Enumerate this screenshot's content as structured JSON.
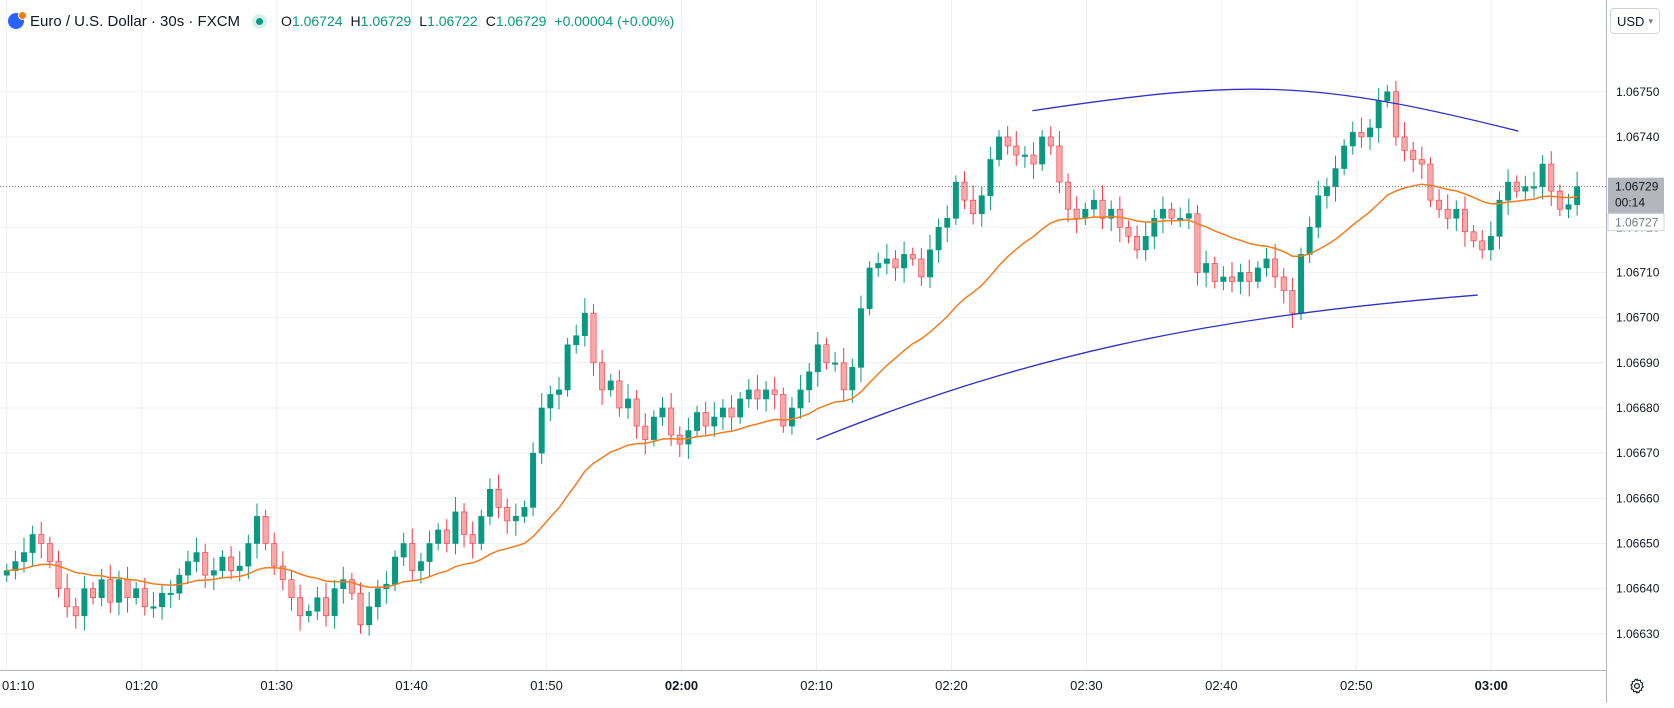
{
  "header": {
    "symbol": "Euro / U.S. Dollar · 30s · FXCM",
    "ohlc": {
      "o_label": "O",
      "o": "1.06724",
      "h_label": "H",
      "h": "1.06729",
      "l_label": "L",
      "l": "1.06722",
      "c_label": "C",
      "c": "1.06729",
      "change": "+0.00004 (+0.00%)"
    }
  },
  "currency_button": {
    "label": "USD"
  },
  "price_tags": {
    "last": "1.06729",
    "countdown": "00:14",
    "ma": "1.06727"
  },
  "colors": {
    "up": "#089981",
    "down": "#f23645",
    "ma": "#f57c1f",
    "trendline": "#3030c8",
    "grid": "#eef1f6",
    "axis_text": "#131722"
  },
  "icons": {
    "settings": "gear-icon",
    "logo": "flag-icon"
  },
  "chart_data": {
    "type": "candlestick",
    "y_range": [
      1.06622,
      1.06765
    ],
    "x_range_minutes": [
      69.5,
      188.5
    ],
    "y_ticks": [
      "1.06750",
      "1.06740",
      "1.06720",
      "1.06710",
      "1.06700",
      "1.06690",
      "1.06680",
      "1.06670",
      "1.06660",
      "1.06650",
      "1.06640",
      "1.06630"
    ],
    "x_ticks": [
      {
        "t": 70,
        "label": "01:10",
        "bold": false
      },
      {
        "t": 80,
        "label": "01:20",
        "bold": false
      },
      {
        "t": 90,
        "label": "01:30",
        "bold": false
      },
      {
        "t": 100,
        "label": "01:40",
        "bold": false
      },
      {
        "t": 110,
        "label": "01:50",
        "bold": false
      },
      {
        "t": 120,
        "label": "02:00",
        "bold": true
      },
      {
        "t": 130,
        "label": "02:10",
        "bold": false
      },
      {
        "t": 140,
        "label": "02:20",
        "bold": false
      },
      {
        "t": 150,
        "label": "02:30",
        "bold": false
      },
      {
        "t": 160,
        "label": "02:40",
        "bold": false
      },
      {
        "t": 170,
        "label": "02:50",
        "bold": false
      },
      {
        "t": 180,
        "label": "03:00",
        "bold": true
      }
    ],
    "closes": [
      1.06644,
      1.06646,
      1.06648,
      1.06652,
      1.0665,
      1.06646,
      1.0664,
      1.06636,
      1.06634,
      1.0664,
      1.06638,
      1.06642,
      1.06637,
      1.06642,
      1.06638,
      1.0664,
      1.06636,
      1.06636,
      1.06639,
      1.06639,
      1.06643,
      1.06646,
      1.06648,
      1.06643,
      1.06644,
      1.06647,
      1.06644,
      1.06645,
      1.0665,
      1.06656,
      1.0665,
      1.06645,
      1.06642,
      1.06638,
      1.06634,
      1.06635,
      1.06638,
      1.06634,
      1.0664,
      1.06642,
      1.06639,
      1.06632,
      1.06636,
      1.0664,
      1.06641,
      1.06647,
      1.0665,
      1.06644,
      1.06646,
      1.0665,
      1.06653,
      1.0665,
      1.06657,
      1.06652,
      1.0665,
      1.06656,
      1.06662,
      1.06658,
      1.06655,
      1.06656,
      1.06658,
      1.0667,
      1.0668,
      1.06683,
      1.06684,
      1.06694,
      1.06696,
      1.06701,
      1.0669,
      1.06684,
      1.06686,
      1.0668,
      1.06682,
      1.06676,
      1.06673,
      1.06678,
      1.0668,
      1.06674,
      1.06672,
      1.06675,
      1.06679,
      1.06676,
      1.06678,
      1.0668,
      1.06678,
      1.06682,
      1.06684,
      1.06682,
      1.06684,
      1.06683,
      1.06676,
      1.0668,
      1.06684,
      1.06688,
      1.06694,
      1.0669,
      1.0669,
      1.06684,
      1.06689,
      1.06702,
      1.06711,
      1.06712,
      1.06713,
      1.06711,
      1.06714,
      1.06713,
      1.06709,
      1.06715,
      1.0672,
      1.06722,
      1.0673,
      1.06726,
      1.06723,
      1.06727,
      1.06735,
      1.0674,
      1.06738,
      1.06736,
      1.06736,
      1.06734,
      1.0674,
      1.06738,
      1.0673,
      1.06724,
      1.06722,
      1.06724,
      1.06726,
      1.06722,
      1.06724,
      1.0672,
      1.06718,
      1.06715,
      1.06718,
      1.06722,
      1.06724,
      1.06722,
      1.06722,
      1.06723,
      1.0671,
      1.06712,
      1.06708,
      1.06709,
      1.06708,
      1.0671,
      1.06708,
      1.06711,
      1.06713,
      1.06709,
      1.06706,
      1.06701,
      1.06714,
      1.0672,
      1.06727,
      1.06729,
      1.06733,
      1.06738,
      1.06741,
      1.0674,
      1.06742,
      1.06748,
      1.0675,
      1.0674,
      1.06737,
      1.06735,
      1.06734,
      1.06726,
      1.06724,
      1.06722,
      1.06724,
      1.06719,
      1.06717,
      1.06715,
      1.06718,
      1.06726,
      1.0673,
      1.06728,
      1.06729,
      1.06729,
      1.06734,
      1.06728,
      1.06724,
      1.06725,
      1.06729
    ]
  }
}
